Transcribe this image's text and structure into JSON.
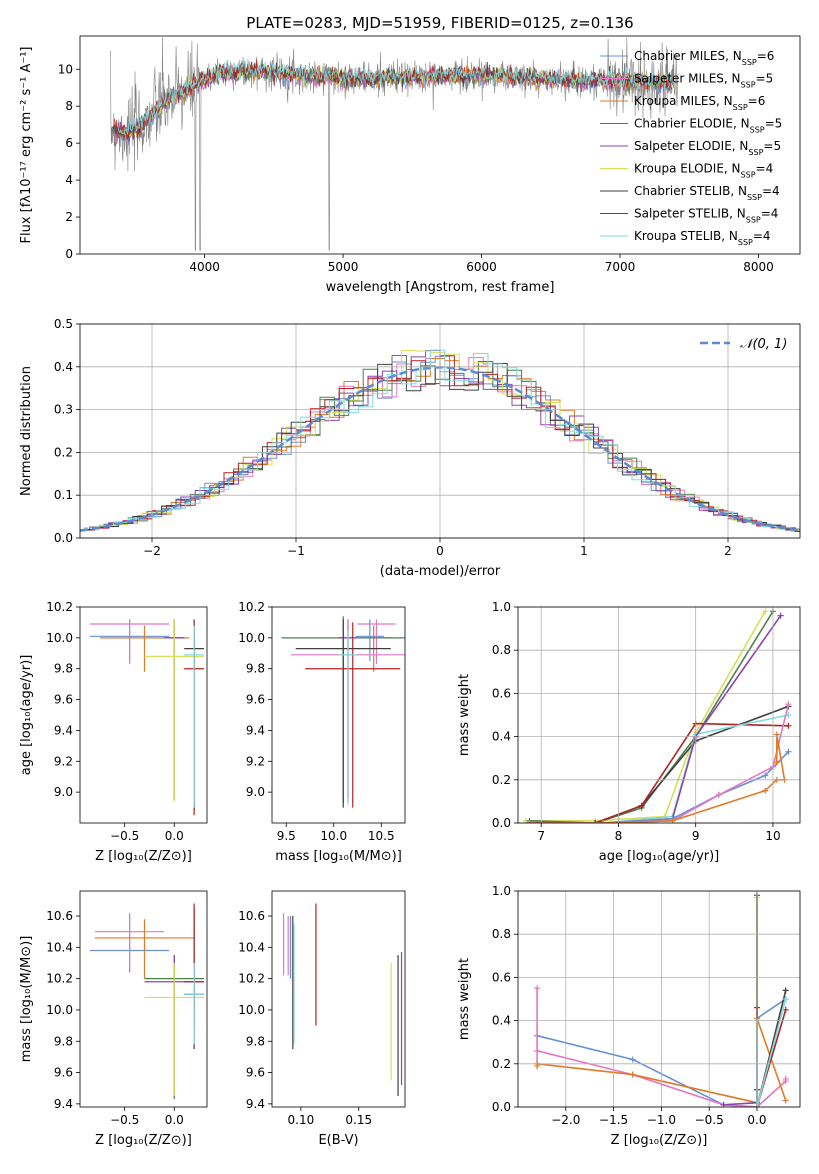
{
  "figure": {
    "title": "PLATE=0283, MJD=51959, FIBERID=0125, z=0.136"
  },
  "chart_data": [
    {
      "id": "spectrum",
      "type": "line",
      "xlabel": "wavelength [Angstrom, rest frame]",
      "ylabel": "Flux [fλ10⁻¹⁷ erg cm⁻² s⁻¹ A⁻¹]",
      "xlim": [
        3100,
        8300
      ],
      "ylim": [
        0,
        11.8
      ],
      "xticks": [
        4000,
        5000,
        6000,
        7000,
        8000
      ],
      "yticks": [
        0,
        2,
        4,
        6,
        8,
        10
      ],
      "grid": false,
      "legend_position": "right",
      "legend": [
        {
          "name": "Chabrier MILES, N",
          "sub": "SSP",
          "tail": "=6",
          "color": "#6a8fd8"
        },
        {
          "name": "Salpeter MILES, N",
          "sub": "SSP",
          "tail": "=5",
          "color": "#e377c2"
        },
        {
          "name": "Kroupa MILES, N",
          "sub": "SSP",
          "tail": "=6",
          "color": "#e07b2a"
        },
        {
          "name": "Chabrier ELODIE, N",
          "sub": "SSP",
          "tail": "=5",
          "color": "#4f7f4f"
        },
        {
          "name": "Salpeter ELODIE, N",
          "sub": "SSP",
          "tail": "=5",
          "color": "#8e44ad"
        },
        {
          "name": "Kroupa ELODIE, N",
          "sub": "SSP",
          "tail": "=4",
          "color": "#d4e157"
        },
        {
          "name": "Chabrier STELIB, N",
          "sub": "SSP",
          "tail": "=4",
          "color": "#404040"
        },
        {
          "name": "Salpeter STELIB, N",
          "sub": "SSP",
          "tail": "=4",
          "color": "#b22222"
        },
        {
          "name": "Kroupa STELIB, N",
          "sub": "SSP",
          "tail": "=4",
          "color": "#7fdbe0"
        }
      ],
      "data_color": "#808080",
      "continuum": {
        "x": [
          3330,
          3450,
          3550,
          3700,
          3900,
          4100,
          4400,
          4800,
          5200,
          5600,
          6000,
          6400,
          6800,
          7200,
          7400
        ],
        "y": [
          6.8,
          6.5,
          7.0,
          8.2,
          9.0,
          9.8,
          9.9,
          9.6,
          9.5,
          9.6,
          9.7,
          9.5,
          9.4,
          9.3,
          9.2
        ]
      }
    },
    {
      "id": "residuals",
      "type": "histogram",
      "xlabel": "(data-model)/error",
      "ylabel": "Normed distribution",
      "xlim": [
        -2.5,
        2.5
      ],
      "ylim": [
        0,
        0.5
      ],
      "xticks": [
        -2,
        -1,
        0,
        1,
        2
      ],
      "xticklabels": [
        "−2",
        "−1",
        "0",
        "1",
        "2"
      ],
      "yticks": [
        0,
        0.1,
        0.2,
        0.3,
        0.4,
        0.5
      ],
      "yticklabels": [
        "0.0",
        "0.1",
        "0.2",
        "0.3",
        "0.4",
        "0.5"
      ],
      "grid": true,
      "legend_position": "top-right",
      "legend_label": "𝒩(0, 1)",
      "normal_color": "#5b8bd4"
    },
    {
      "id": "age-vs-Z",
      "type": "errorbar",
      "xlabel": "Z [log₁₀(Z/Z⊙)]",
      "ylabel": "age  [log₁₀(age/yr)]",
      "xlim": [
        -0.95,
        0.33
      ],
      "ylim": [
        8.8,
        10.2
      ],
      "xticks": [
        -0.5,
        0.0
      ],
      "xticklabels": [
        "−0.5",
        "0.0"
      ],
      "yticks": [
        9.0,
        9.2,
        9.4,
        9.6,
        9.8,
        10.0,
        10.2
      ],
      "yticklabels": [
        "9.0",
        "9.2",
        "9.4",
        "9.6",
        "9.8",
        "10.0",
        "10.2"
      ],
      "grid": false,
      "points": [
        {
          "x": -0.45,
          "xerr": 0.4,
          "y": 10.01,
          "ylo": 9.85,
          "yhi": 10.12,
          "color": "#6a8fd8"
        },
        {
          "x": -0.45,
          "xerr": 0.4,
          "y": 10.09,
          "ylo": 9.83,
          "yhi": 10.12,
          "color": "#e377c2"
        },
        {
          "x": -0.3,
          "xerr": 0.45,
          "y": 10.0,
          "ylo": 9.78,
          "yhi": 10.08,
          "color": "#e07b2a"
        },
        {
          "x": 0.0,
          "xerr": 0.1,
          "y": 10.0,
          "ylo": 8.95,
          "yhi": 10.12,
          "color": "#4f7f4f"
        },
        {
          "x": 0.0,
          "xerr": 0.1,
          "y": 10.0,
          "ylo": 8.96,
          "yhi": 10.12,
          "color": "#8e44ad"
        },
        {
          "x": 0.0,
          "xerr": 0.3,
          "y": 9.88,
          "ylo": 8.94,
          "yhi": 10.12,
          "color": "#d4e157"
        },
        {
          "x": 0.2,
          "xerr": 0.1,
          "y": 9.93,
          "ylo": 8.88,
          "yhi": 10.12,
          "color": "#404040"
        },
        {
          "x": 0.2,
          "xerr": 0.1,
          "y": 9.8,
          "ylo": 8.85,
          "yhi": 10.1,
          "color": "#b22222"
        },
        {
          "x": 0.2,
          "xerr": 0.1,
          "y": 9.89,
          "ylo": 8.9,
          "yhi": 10.08,
          "color": "#7fdbe0"
        }
      ]
    },
    {
      "id": "age-vs-mass",
      "type": "errorbar",
      "xlabel": "mass [log₁₀(M/M⊙)]",
      "ylabel": "",
      "xlim": [
        9.35,
        10.75
      ],
      "ylim": [
        8.8,
        10.2
      ],
      "xticks": [
        9.5,
        10.0,
        10.5
      ],
      "xticklabels": [
        "9.5",
        "10.0",
        "10.5"
      ],
      "yticks": [
        9.0,
        9.2,
        9.4,
        9.6,
        9.8,
        10.0,
        10.2
      ],
      "yticklabels": [
        "9.0",
        "9.2",
        "9.4",
        "9.6",
        "9.8",
        "10.0",
        "10.2"
      ],
      "grid": false,
      "points": [
        {
          "x": 10.38,
          "xerr": 0.15,
          "y": 10.01,
          "ylo": 9.85,
          "yhi": 10.12,
          "color": "#6a8fd8"
        },
        {
          "x": 10.45,
          "xerr": 0.2,
          "y": 10.09,
          "ylo": 9.83,
          "yhi": 10.12,
          "color": "#e377c2"
        },
        {
          "x": 10.42,
          "xerr": 0.2,
          "y": 10.0,
          "ylo": 9.78,
          "yhi": 10.08,
          "color": "#e07b2a"
        },
        {
          "x": 10.1,
          "xerr": 0.65,
          "y": 10.0,
          "ylo": 8.93,
          "yhi": 10.14,
          "color": "#4f7f4f"
        },
        {
          "x": 10.15,
          "xerr": 0.1,
          "y": 10.0,
          "ylo": 8.96,
          "yhi": 10.12,
          "color": "#8e44ad"
        },
        {
          "x": 10.15,
          "xerr": 0.6,
          "y": 9.89,
          "ylo": 8.94,
          "yhi": 10.12,
          "color": "#e377c2"
        },
        {
          "x": 10.1,
          "xerr": 0.5,
          "y": 9.93,
          "ylo": 8.9,
          "yhi": 10.12,
          "color": "#404040"
        },
        {
          "x": 10.2,
          "xerr": 0.5,
          "y": 9.8,
          "ylo": 8.9,
          "yhi": 10.1,
          "color": "#b22222"
        },
        {
          "x": 10.15,
          "xerr": 0.1,
          "y": 9.89,
          "ylo": 8.92,
          "yhi": 10.05,
          "color": "#7fdbe0"
        }
      ]
    },
    {
      "id": "mass-weight-vs-age",
      "type": "line",
      "xlabel": "age  [log₁₀(age/yr)]",
      "ylabel": "mass weight",
      "xlim": [
        6.7,
        10.35
      ],
      "ylim": [
        0,
        1.0
      ],
      "xticks": [
        7,
        8,
        9,
        10
      ],
      "xticklabels": [
        "7",
        "8",
        "9",
        "10"
      ],
      "yticks": [
        0,
        0.2,
        0.4,
        0.6,
        0.8,
        1.0
      ],
      "yticklabels": [
        "0.0",
        "0.2",
        "0.4",
        "0.6",
        "0.8",
        "1.0"
      ],
      "grid": true,
      "series": [
        {
          "color": "#d4e157",
          "x": [
            6.8,
            7.7,
            8.6,
            9.0,
            9.9
          ],
          "y": [
            0.01,
            0.01,
            0.03,
            0.42,
            0.98
          ]
        },
        {
          "color": "#4f7f4f",
          "x": [
            6.85,
            7.7,
            8.3,
            9.0,
            10.0
          ],
          "y": [
            0.01,
            0.0,
            0.07,
            0.4,
            0.98
          ]
        },
        {
          "color": "#404040",
          "x": [
            6.85,
            7.7,
            8.3,
            9.0,
            10.2
          ],
          "y": [
            0.0,
            0.0,
            0.08,
            0.38,
            0.54
          ]
        },
        {
          "color": "#b22222",
          "x": [
            6.85,
            7.7,
            8.3,
            9.0,
            10.2
          ],
          "y": [
            0.0,
            0.0,
            0.08,
            0.46,
            0.45
          ]
        },
        {
          "color": "#7fdbe0",
          "x": [
            6.85,
            7.8,
            8.7,
            9.0,
            10.2
          ],
          "y": [
            0.0,
            0.0,
            0.03,
            0.41,
            0.5
          ]
        },
        {
          "color": "#8e44ad",
          "x": [
            6.85,
            7.8,
            8.7,
            9.0,
            10.1
          ],
          "y": [
            0.0,
            0.0,
            0.02,
            0.4,
            0.96
          ]
        },
        {
          "color": "#6a8fd8",
          "x": [
            6.85,
            7.8,
            8.7,
            9.3,
            9.9,
            10.2
          ],
          "y": [
            0.0,
            0.0,
            0.02,
            0.13,
            0.22,
            0.33
          ]
        },
        {
          "color": "#e377c2",
          "x": [
            6.85,
            7.8,
            8.7,
            9.3,
            10.0,
            10.2
          ],
          "y": [
            0.0,
            0.0,
            0.01,
            0.13,
            0.26,
            0.55
          ]
        },
        {
          "color": "#e07b2a",
          "x": [
            6.85,
            7.8,
            8.7,
            9.9,
            10.05,
            10.15,
            10.05,
            10.05
          ],
          "y": [
            0.0,
            0.0,
            0.01,
            0.15,
            0.2,
            0.2,
            0.41,
            0.28
          ]
        }
      ]
    },
    {
      "id": "mass-vs-Z",
      "type": "errorbar",
      "xlabel": "Z [log₁₀(Z/Z⊙)]",
      "ylabel": "mass [log₁₀(M/M⊙)]",
      "xlim": [
        -0.95,
        0.33
      ],
      "ylim": [
        9.38,
        10.76
      ],
      "xticks": [
        -0.5,
        0.0
      ],
      "xticklabels": [
        "−0.5",
        "0.0"
      ],
      "yticks": [
        9.4,
        9.6,
        9.8,
        10.0,
        10.2,
        10.4,
        10.6
      ],
      "yticklabels": [
        "9.4",
        "9.6",
        "9.8",
        "10.0",
        "10.2",
        "10.4",
        "10.6"
      ],
      "grid": false,
      "points": [
        {
          "x": -0.45,
          "xerr": 0.4,
          "y": 10.38,
          "ylo": 10.24,
          "yhi": 10.6,
          "color": "#6a8fd8"
        },
        {
          "x": -0.45,
          "xerr": 0.35,
          "y": 10.5,
          "ylo": 10.26,
          "yhi": 10.62,
          "color": "#e377c2"
        },
        {
          "x": -0.3,
          "xerr": 0.5,
          "y": 10.46,
          "ylo": 10.2,
          "yhi": 10.58,
          "color": "#e07b2a"
        },
        {
          "x": 0.0,
          "xerr": 0.3,
          "y": 10.2,
          "ylo": 9.43,
          "yhi": 10.35,
          "color": "#4f7f4f"
        },
        {
          "x": 0.0,
          "xerr": 0.3,
          "y": 10.18,
          "ylo": 9.45,
          "yhi": 10.35,
          "color": "#8e44ad"
        },
        {
          "x": 0.0,
          "xerr": 0.3,
          "y": 10.08,
          "ylo": 9.45,
          "yhi": 10.3,
          "color": "#d4e157"
        },
        {
          "x": 0.2,
          "xerr": 0.1,
          "y": 10.1,
          "ylo": 9.75,
          "yhi": 10.65,
          "color": "#404040"
        },
        {
          "x": 0.2,
          "xerr": 0.1,
          "y": 10.18,
          "ylo": 9.9,
          "yhi": 10.68,
          "color": "#b22222"
        },
        {
          "x": 0.2,
          "xerr": 0.1,
          "y": 10.1,
          "ylo": 9.78,
          "yhi": 10.3,
          "color": "#7fdbe0"
        }
      ]
    },
    {
      "id": "mass-vs-EBV",
      "type": "errorbar",
      "xlabel": "E(B-V)",
      "ylabel": "",
      "xlim": [
        0.075,
        0.19
      ],
      "ylim": [
        9.38,
        10.76
      ],
      "xticks": [
        0.1,
        0.15
      ],
      "xticklabels": [
        "0.10",
        "0.15"
      ],
      "yticks": [
        9.4,
        9.6,
        9.8,
        10.0,
        10.2,
        10.4,
        10.6
      ],
      "yticklabels": [
        "9.4",
        "9.6",
        "9.8",
        "10.0",
        "10.2",
        "10.4",
        "10.6"
      ],
      "grid": false,
      "points": [
        {
          "x": 0.085,
          "y": 10.42,
          "ylo": 10.22,
          "yhi": 10.62,
          "color": "#e377c2"
        },
        {
          "x": 0.089,
          "y": 10.42,
          "ylo": 10.22,
          "yhi": 10.6,
          "color": "#e377c2"
        },
        {
          "x": 0.091,
          "y": 10.3,
          "ylo": 10.2,
          "yhi": 10.6,
          "color": "#6a8fd8"
        },
        {
          "x": 0.093,
          "y": 10.2,
          "ylo": 9.75,
          "yhi": 10.6,
          "color": "#404040"
        },
        {
          "x": 0.094,
          "y": 10.15,
          "ylo": 9.78,
          "yhi": 10.55,
          "color": "#7fdbe0"
        },
        {
          "x": 0.113,
          "y": 10.3,
          "ylo": 9.9,
          "yhi": 10.68,
          "color": "#b22222"
        },
        {
          "x": 0.178,
          "y": 9.92,
          "ylo": 9.55,
          "yhi": 10.3,
          "color": "#d4e157"
        },
        {
          "x": 0.184,
          "y": 9.88,
          "ylo": 9.45,
          "yhi": 10.35,
          "color": "#404040"
        },
        {
          "x": 0.187,
          "y": 9.93,
          "ylo": 9.52,
          "yhi": 10.37,
          "color": "#8e44ad"
        }
      ]
    },
    {
      "id": "mass-weight-vs-Z",
      "type": "line",
      "xlabel": "Z [log₁₀(Z/Z⊙)]",
      "ylabel": "mass weight",
      "xlim": [
        -2.5,
        0.45
      ],
      "ylim": [
        0,
        1.0
      ],
      "xticks": [
        -2.0,
        -1.5,
        -1.0,
        -0.5,
        0.0
      ],
      "xticklabels": [
        "−2.0",
        "−1.5",
        "−1.0",
        "−0.5",
        "0.0"
      ],
      "yticks": [
        0,
        0.2,
        0.4,
        0.6,
        0.8,
        1.0
      ],
      "yticklabels": [
        "0.0",
        "0.2",
        "0.4",
        "0.6",
        "0.8",
        "1.0"
      ],
      "grid": true,
      "series": [
        {
          "color": "#6a8fd8",
          "x": [
            -2.3,
            -1.3,
            -0.35,
            0.0,
            0.0,
            0.3
          ],
          "y": [
            0.33,
            0.22,
            0.01,
            0.0,
            0.41,
            0.5
          ]
        },
        {
          "color": "#e377c2",
          "x": [
            -2.3,
            -2.3,
            -2.3,
            -1.3,
            -0.35,
            0.0,
            0.3,
            0.3
          ],
          "y": [
            0.55,
            0.2,
            0.26,
            0.15,
            0.01,
            0.0,
            0.12,
            0.13
          ]
        },
        {
          "color": "#e07b2a",
          "x": [
            -2.3,
            -2.3,
            -1.3,
            0.0,
            0.0,
            0.3
          ],
          "y": [
            0.19,
            0.2,
            0.15,
            0.02,
            0.41,
            0.03
          ]
        },
        {
          "color": "#8e44ad",
          "x": [
            -0.35,
            0.0,
            0.0
          ],
          "y": [
            0.01,
            0.02,
            0.98
          ]
        },
        {
          "color": "#d4e157",
          "x": [
            0.0,
            0.0
          ],
          "y": [
            0.0,
            0.97
          ]
        },
        {
          "color": "#4f7f4f",
          "x": [
            0.0,
            0.0
          ],
          "y": [
            0.02,
            0.98
          ]
        },
        {
          "color": "#404040",
          "x": [
            0.0,
            0.0,
            0.3
          ],
          "y": [
            0.08,
            0.0,
            0.54
          ]
        },
        {
          "color": "#b22222",
          "x": [
            0.0,
            0.0,
            0.3
          ],
          "y": [
            0.46,
            0.0,
            0.45
          ]
        },
        {
          "color": "#7fdbe0",
          "x": [
            0.0,
            0.0,
            0.3
          ],
          "y": [
            0.4,
            0.0,
            0.5
          ]
        }
      ]
    }
  ]
}
